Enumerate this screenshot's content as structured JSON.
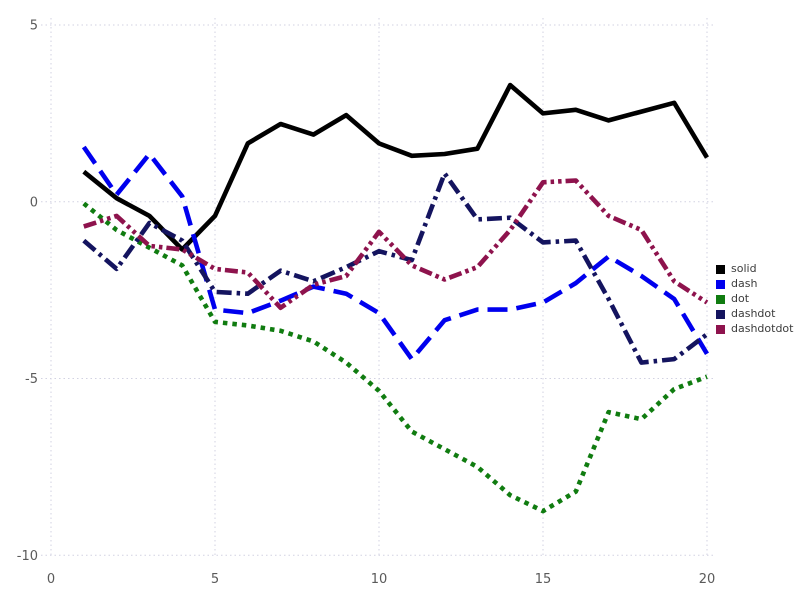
{
  "chart_data": {
    "type": "line",
    "title": "",
    "xlabel": "",
    "ylabel": "",
    "grid": true,
    "legend_position": "right-middle",
    "xlim": [
      0,
      20.4
    ],
    "ylim": [
      -10.6,
      5.56
    ],
    "x": [
      1,
      2,
      3,
      4,
      5,
      6,
      7,
      8,
      9,
      10,
      11,
      12,
      13,
      14,
      15,
      16,
      17,
      18,
      19,
      20
    ],
    "series": [
      {
        "name": "solid",
        "color": "#000000",
        "line_style": "solid",
        "values": [
          0.85,
          0.1,
          -0.4,
          -1.35,
          -0.4,
          1.65,
          2.2,
          1.9,
          2.45,
          1.65,
          1.3,
          1.35,
          1.5,
          3.3,
          2.5,
          2.6,
          2.3,
          2.55,
          2.8,
          1.25
        ]
      },
      {
        "name": "dash",
        "color": "#0000ee",
        "line_style": "dash",
        "values": [
          1.55,
          0.2,
          1.35,
          0.15,
          -3.05,
          -3.15,
          -2.8,
          -2.4,
          -2.6,
          -3.15,
          -4.45,
          -3.35,
          -3.05,
          -3.05,
          -2.85,
          -2.3,
          -1.55,
          -2.1,
          -2.75,
          -4.3
        ]
      },
      {
        "name": "dot",
        "color": "#107c10",
        "line_style": "dot",
        "values": [
          -0.05,
          -0.8,
          -1.3,
          -1.8,
          -3.4,
          -3.5,
          -3.65,
          -3.95,
          -4.55,
          -5.35,
          -6.5,
          -7.0,
          -7.5,
          -8.3,
          -8.75,
          -8.2,
          -5.95,
          -6.15,
          -5.3,
          -4.95
        ]
      },
      {
        "name": "dashdot",
        "color": "#14145f",
        "line_style": "dashdot",
        "values": [
          -1.1,
          -1.9,
          -0.6,
          -1.1,
          -2.55,
          -2.6,
          -1.95,
          -2.25,
          -1.85,
          -1.4,
          -1.65,
          0.8,
          -0.5,
          -0.45,
          -1.15,
          -1.1,
          -2.75,
          -4.55,
          -4.45,
          -3.75
        ]
      },
      {
        "name": "dashdotdot",
        "color": "#8e134d",
        "line_style": "dashdotdot",
        "values": [
          -0.7,
          -0.4,
          -1.25,
          -1.35,
          -1.9,
          -2.0,
          -3.0,
          -2.35,
          -2.1,
          -0.85,
          -1.8,
          -2.2,
          -1.85,
          -0.8,
          0.55,
          0.6,
          -0.4,
          -0.8,
          -2.25,
          -2.85
        ]
      }
    ],
    "xticks": [
      {
        "value": 0,
        "label": "0"
      },
      {
        "value": 5,
        "label": "5"
      },
      {
        "value": 10,
        "label": "10"
      },
      {
        "value": 15,
        "label": "15"
      },
      {
        "value": 20,
        "label": "20"
      }
    ],
    "yticks": [
      {
        "value": 5,
        "label": "5"
      },
      {
        "value": 0,
        "label": "0"
      },
      {
        "value": -5,
        "label": "-5"
      },
      {
        "value": -10,
        "label": "-10"
      }
    ]
  },
  "legend": {
    "items": [
      {
        "label": "solid"
      },
      {
        "label": "dash"
      },
      {
        "label": "dot"
      },
      {
        "label": "dashdot"
      },
      {
        "label": "dashdotdot"
      }
    ]
  },
  "style": {
    "background": "#ffffff",
    "grid_color": "#d2d2e2",
    "tick_label_color": "#5a5a5a",
    "legend_text_color": "#3c3c3c",
    "line_width": 4.6
  }
}
